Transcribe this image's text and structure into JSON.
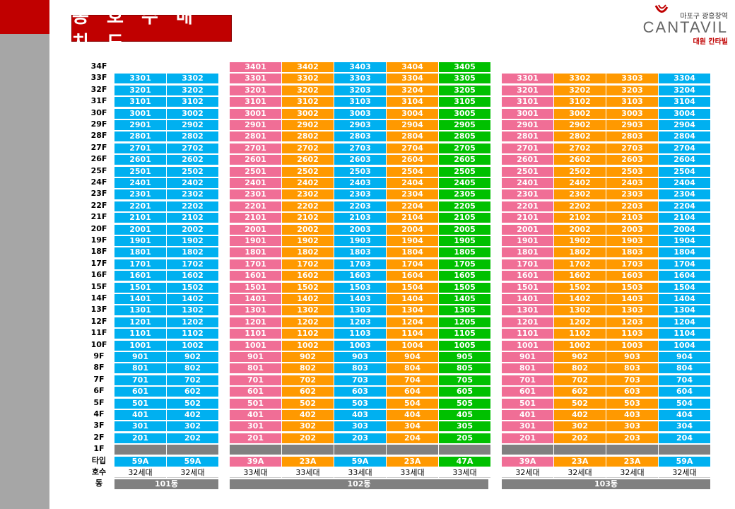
{
  "title": "동 호 수 배 치 도",
  "logo": {
    "top_text": "마포구 광흥창역",
    "brand": "CANTAVIL",
    "sub_text": "대원 칸타빌"
  },
  "row_labels": {
    "type": "타입",
    "units": "호수",
    "building": "동"
  },
  "floors": [
    "34F",
    "33F",
    "32F",
    "31F",
    "30F",
    "29F",
    "28F",
    "27F",
    "26F",
    "25F",
    "24F",
    "23F",
    "22F",
    "21F",
    "20F",
    "19F",
    "18F",
    "17F",
    "16F",
    "15F",
    "14F",
    "13F",
    "12F",
    "11F",
    "10F",
    "9F",
    "8F",
    "7F",
    "6F",
    "5F",
    "4F",
    "3F",
    "2F",
    "1F"
  ],
  "buildings": [
    {
      "name": "101동",
      "units_text": "32세대",
      "columns": [
        {
          "line": "01",
          "type": "59A",
          "color": "#00b0f0",
          "top_floor": 33
        },
        {
          "line": "02",
          "type": "59A",
          "color": "#00b0f0",
          "top_floor": 33
        }
      ]
    },
    {
      "name": "102동",
      "units_text": "33세대",
      "columns": [
        {
          "line": "01",
          "type": "39A",
          "color": "#f06e96",
          "top_floor": 34
        },
        {
          "line": "02",
          "type": "23A",
          "color": "#ff9900",
          "top_floor": 34
        },
        {
          "line": "03",
          "type": "59A",
          "color": "#00b0f0",
          "top_floor": 34
        },
        {
          "line": "04",
          "type": "23A",
          "color": "#ff9900",
          "top_floor": 34
        },
        {
          "line": "05",
          "type": "47A",
          "color": "#00c000",
          "top_floor": 34
        }
      ]
    },
    {
      "name": "103동",
      "units_text": "32세대",
      "columns": [
        {
          "line": "01",
          "type": "39A",
          "color": "#f06e96",
          "top_floor": 33
        },
        {
          "line": "02",
          "type": "23A",
          "color": "#ff9900",
          "top_floor": 33
        },
        {
          "line": "03",
          "type": "23A",
          "color": "#ff9900",
          "top_floor": 33
        },
        {
          "line": "04",
          "type": "59A",
          "color": "#00b0f0",
          "top_floor": 33
        }
      ]
    }
  ]
}
